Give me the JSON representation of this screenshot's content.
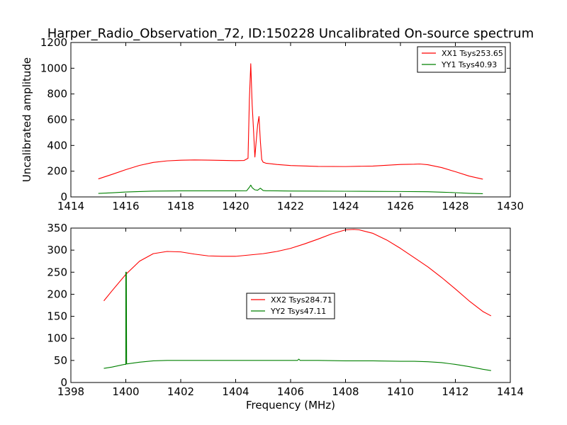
{
  "chart_data": [
    {
      "type": "line",
      "title": "Harper_Radio_Observation_72, ID:150228 Uncalibrated On-source spectrum",
      "xlabel": "",
      "ylabel": "Uncalibrated amplitude",
      "xlim": [
        1414,
        1430
      ],
      "ylim": [
        0,
        1200
      ],
      "xticks": [
        1414,
        1416,
        1418,
        1420,
        1422,
        1424,
        1426,
        1428,
        1430
      ],
      "yticks": [
        0,
        200,
        400,
        600,
        800,
        1000,
        1200
      ],
      "legend_position": "top-right",
      "series": [
        {
          "name": "XX1 Tsys253.65",
          "color": "#ff0000",
          "x": [
            1415.0,
            1415.5,
            1416.0,
            1416.5,
            1417.0,
            1417.5,
            1418.0,
            1418.5,
            1419.0,
            1419.5,
            1420.0,
            1420.3,
            1420.45,
            1420.5,
            1420.55,
            1420.6,
            1420.65,
            1420.7,
            1420.75,
            1420.8,
            1420.85,
            1420.9,
            1420.95,
            1421.0,
            1421.1,
            1421.5,
            1422.0,
            1423.0,
            1424.0,
            1425.0,
            1426.0,
            1426.5,
            1426.7,
            1427.0,
            1427.5,
            1428.0,
            1428.5,
            1429.0
          ],
          "values": [
            140,
            175,
            212,
            245,
            268,
            280,
            285,
            287,
            286,
            284,
            282,
            283,
            300,
            760,
            1035,
            720,
            520,
            310,
            440,
            560,
            625,
            430,
            290,
            270,
            262,
            252,
            244,
            237,
            236,
            240,
            252,
            254,
            256,
            250,
            228,
            196,
            162,
            138
          ]
        },
        {
          "name": "YY1 Tsys40.93",
          "color": "#008000",
          "x": [
            1415.0,
            1415.5,
            1416.0,
            1417.0,
            1418.0,
            1419.0,
            1420.0,
            1420.4,
            1420.5,
            1420.55,
            1420.6,
            1420.7,
            1420.8,
            1420.9,
            1421.0,
            1421.1,
            1422.0,
            1423.0,
            1424.0,
            1425.0,
            1426.0,
            1427.0,
            1427.5,
            1428.0,
            1428.5,
            1429.0
          ],
          "values": [
            27,
            32,
            38,
            45,
            47,
            47,
            47,
            48,
            75,
            92,
            72,
            55,
            52,
            68,
            50,
            48,
            46,
            45,
            44,
            43,
            42,
            40,
            37,
            33,
            28,
            25
          ]
        }
      ]
    },
    {
      "type": "line",
      "title": "",
      "xlabel": "Frequency (MHz)",
      "ylabel": "",
      "xlim": [
        1398,
        1414
      ],
      "ylim": [
        0,
        350
      ],
      "xticks": [
        1398,
        1400,
        1402,
        1404,
        1406,
        1408,
        1410,
        1412,
        1414
      ],
      "yticks": [
        0,
        50,
        100,
        150,
        200,
        250,
        300,
        350
      ],
      "legend_position": "center",
      "series": [
        {
          "name": "XX2 Tsys284.71",
          "color": "#ff0000",
          "x": [
            1399.2,
            1399.5,
            1400.0,
            1400.5,
            1401.0,
            1401.5,
            1402.0,
            1402.5,
            1403.0,
            1403.5,
            1404.0,
            1404.5,
            1405.0,
            1405.5,
            1406.0,
            1406.5,
            1407.0,
            1407.5,
            1408.0,
            1408.3,
            1408.5,
            1409.0,
            1409.5,
            1410.0,
            1410.5,
            1411.0,
            1411.5,
            1412.0,
            1412.5,
            1413.0,
            1413.3
          ],
          "values": [
            185,
            208,
            245,
            275,
            292,
            297,
            296,
            291,
            287,
            286,
            286,
            289,
            292,
            297,
            304,
            314,
            325,
            337,
            346,
            347,
            346,
            338,
            323,
            304,
            283,
            262,
            238,
            212,
            185,
            161,
            151
          ]
        },
        {
          "name": "YY2 Tsys47.11",
          "color": "#008000",
          "x": [
            1399.2,
            1399.5,
            1399.95,
            1400.0,
            1400.0,
            1400.02,
            1400.03,
            1400.5,
            1401.0,
            1401.5,
            1402.0,
            1403.0,
            1404.0,
            1405.0,
            1406.0,
            1406.25,
            1406.3,
            1406.35,
            1406.5,
            1407.0,
            1408.0,
            1409.0,
            1410.0,
            1410.5,
            1411.0,
            1411.5,
            1412.0,
            1412.5,
            1413.0,
            1413.3
          ],
          "values": [
            32,
            35,
            41,
            41,
            250,
            250,
            42,
            46,
            49,
            50,
            50,
            50,
            50,
            50,
            50,
            50,
            53,
            50,
            50,
            50,
            49,
            49,
            48,
            48,
            47,
            45,
            41,
            36,
            30,
            27
          ]
        }
      ]
    }
  ]
}
